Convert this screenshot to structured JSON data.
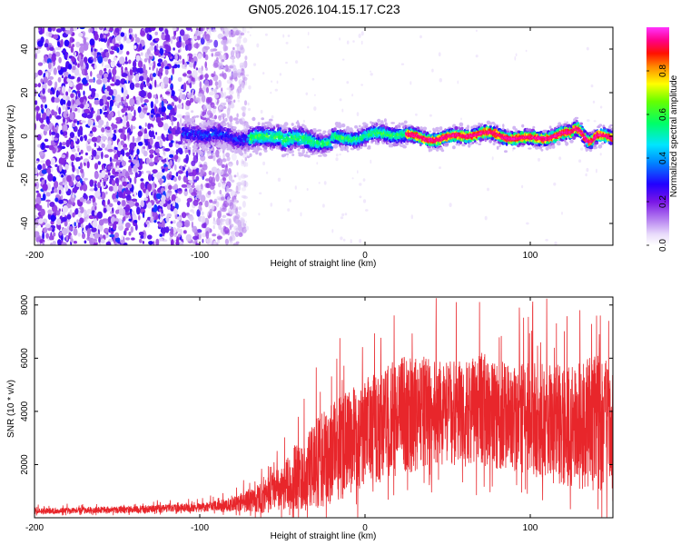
{
  "chart_data": {
    "title": "GN05.2026.104.15.17.C23",
    "panels": [
      {
        "type": "heatmap",
        "xlabel": "Height of straight line (km)",
        "ylabel": "Frequency (Hz)",
        "xlim": [
          -200,
          150
        ],
        "ylim": [
          -50,
          50
        ],
        "xticks": [
          -200,
          -100,
          0,
          100
        ],
        "xtick_labels": [
          "-200",
          "-100",
          "0",
          "100"
        ],
        "yticks": [
          -40,
          -20,
          0,
          20,
          40
        ],
        "ytick_labels": [
          "-40",
          "-20",
          "0",
          "20",
          "40"
        ],
        "noise_extent_km": [
          -200,
          -72
        ],
        "signal_band_start_km": -110,
        "ridge_start_km": 25,
        "ridge_frequency_hz": 0,
        "colorbar": {
          "label": "Normalized spectral amplitude",
          "range": [
            0,
            1
          ],
          "ticks": [
            0.0,
            0.2,
            0.4,
            0.6,
            0.8
          ],
          "tick_labels": [
            "0.0",
            "0.2",
            "0.4",
            "0.6",
            "0.8"
          ],
          "colors": [
            "#ffffff",
            "#d7c2f5",
            "#8a2be2",
            "#2200ff",
            "#00d8ff",
            "#00ff55",
            "#ffff00",
            "#ff2200",
            "#ff0099",
            "#ff40ff"
          ]
        }
      },
      {
        "type": "line",
        "xlabel": "Height of straight line (km)",
        "ylabel": "SNR (10 * v/v)",
        "xlim": [
          -200,
          150
        ],
        "ylim": [
          0,
          8300
        ],
        "xticks": [
          -200,
          -100,
          0,
          100
        ],
        "xtick_labels": [
          "-200",
          "-100",
          "0",
          "100"
        ],
        "yticks": [
          2000,
          4000,
          6000,
          8000
        ],
        "ytick_labels": [
          "2000",
          "4000",
          "6000",
          "8000"
        ],
        "color": "#e8262b",
        "envelope_x": [
          -200,
          -150,
          -100,
          -80,
          -60,
          -50,
          -40,
          -30,
          -20,
          -10,
          0,
          10,
          20,
          30,
          40,
          50,
          60,
          70,
          80,
          90,
          100,
          110,
          120,
          130,
          140,
          150
        ],
        "envelope_mean": [
          250,
          300,
          380,
          500,
          800,
          1200,
          1600,
          2000,
          2400,
          2800,
          3200,
          3500,
          3800,
          3900,
          4000,
          4000,
          3900,
          4100,
          3900,
          3800,
          3700,
          3600,
          3500,
          3500,
          3600,
          3400
        ],
        "envelope_spread": [
          120,
          150,
          180,
          300,
          700,
          1000,
          1500,
          1900,
          2100,
          2200,
          2300,
          2400,
          2500,
          2400,
          2300,
          2200,
          2200,
          2400,
          2300,
          2300,
          2400,
          2500,
          2600,
          2700,
          2900,
          2600
        ]
      }
    ]
  }
}
